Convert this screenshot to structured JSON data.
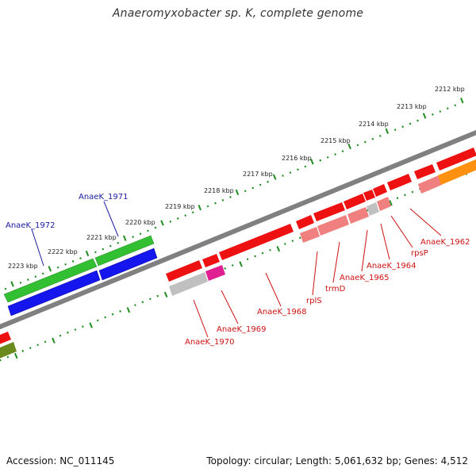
{
  "title": "Anaeromyxobacter sp. K, complete genome",
  "footer": {
    "accession": "Accession: NC_011145",
    "topology": "Topology: circular; Length: 5,061,632 bp; Genes: 4,512"
  },
  "colors": {
    "backbone": "#808080",
    "ticks": "#1e8c1e",
    "label_blue": "#1a1aa0",
    "label_red": "#cc1111"
  },
  "scale_labels": [
    "2212 kbp",
    "2213 kbp",
    "2214 kbp",
    "2215 kbp",
    "2216 kbp",
    "2217 kbp",
    "2218 kbp",
    "2219 kbp",
    "2220 kbp",
    "2221 kbp",
    "2222 kbp",
    "2223 kbp"
  ],
  "gene_labels": [
    {
      "text": "AnaeK_1972",
      "color": "#1a1aa0"
    },
    {
      "text": "AnaeK_1971",
      "color": "#1a1aa0"
    },
    {
      "text": "AnaeK_1970",
      "color": "#cc1111"
    },
    {
      "text": "AnaeK_1969",
      "color": "#cc1111"
    },
    {
      "text": "AnaeK_1968",
      "color": "#cc1111"
    },
    {
      "text": "rplS",
      "color": "#cc1111"
    },
    {
      "text": "trmD",
      "color": "#cc1111"
    },
    {
      "text": "AnaeK_1965",
      "color": "#cc1111"
    },
    {
      "text": "AnaeK_1964",
      "color": "#cc1111"
    },
    {
      "text": "rpsP",
      "color": "#cc1111"
    },
    {
      "text": "AnaeK_1962",
      "color": "#cc1111"
    }
  ]
}
